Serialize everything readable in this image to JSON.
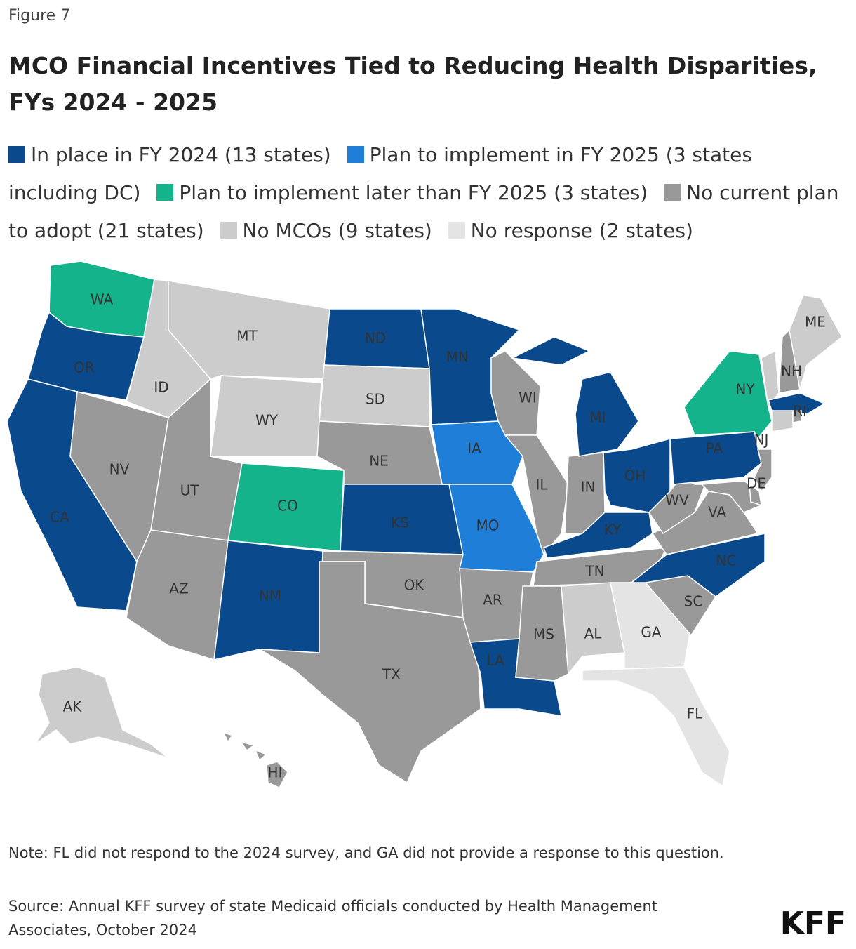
{
  "figure_label": "Figure 7",
  "title": "MCO Financial Incentives Tied to Reducing Health Disparities, FYs 2024 - 2025",
  "legend": [
    {
      "label": "In place in FY 2024 (13 states)",
      "color": "#0a4a8c"
    },
    {
      "label": "Plan to implement in FY 2025 (3 states including DC)",
      "color": "#1f7fd8"
    },
    {
      "label": "Plan to implement later than FY 2025 (3 states)",
      "color": "#14b38b"
    },
    {
      "label": "No current plan to adopt (21 states)",
      "color": "#999999"
    },
    {
      "label": "No MCOs (9 states)",
      "color": "#cccccc"
    },
    {
      "label": "No response (2 states)",
      "color": "#e4e4e4"
    }
  ],
  "states": [
    {
      "label": "WA",
      "category": 2
    },
    {
      "label": "OR",
      "category": 0
    },
    {
      "label": "CA",
      "category": 0
    },
    {
      "label": "NV",
      "category": 3
    },
    {
      "label": "ID",
      "category": 4
    },
    {
      "label": "MT",
      "category": 4
    },
    {
      "label": "WY",
      "category": 4
    },
    {
      "label": "UT",
      "category": 3
    },
    {
      "label": "CO",
      "category": 2
    },
    {
      "label": "AZ",
      "category": 3
    },
    {
      "label": "NM",
      "category": 0
    },
    {
      "label": "ND",
      "category": 0
    },
    {
      "label": "SD",
      "category": 4
    },
    {
      "label": "NE",
      "category": 3
    },
    {
      "label": "KS",
      "category": 0
    },
    {
      "label": "OK",
      "category": 3
    },
    {
      "label": "TX",
      "category": 3
    },
    {
      "label": "MN",
      "category": 0
    },
    {
      "label": "IA",
      "category": 1
    },
    {
      "label": "MO",
      "category": 1
    },
    {
      "label": "AR",
      "category": 3
    },
    {
      "label": "LA",
      "category": 0
    },
    {
      "label": "WI",
      "category": 3
    },
    {
      "label": "IL",
      "category": 3
    },
    {
      "label": "IN",
      "category": 3
    },
    {
      "label": "MI",
      "category": 0
    },
    {
      "label": "OH",
      "category": 0
    },
    {
      "label": "KY",
      "category": 0
    },
    {
      "label": "TN",
      "category": 3
    },
    {
      "label": "MS",
      "category": 3
    },
    {
      "label": "AL",
      "category": 4
    },
    {
      "label": "GA",
      "category": 5
    },
    {
      "label": "FL",
      "category": 5
    },
    {
      "label": "SC",
      "category": 3
    },
    {
      "label": "NC",
      "category": 0
    },
    {
      "label": "VA",
      "category": 3
    },
    {
      "label": "WV",
      "category": 3
    },
    {
      "label": "PA",
      "category": 0
    },
    {
      "label": "NY",
      "category": 2
    },
    {
      "label": "NJ",
      "category": 3
    },
    {
      "label": "DE",
      "category": 3
    },
    {
      "label": null,
      "category": 3
    },
    {
      "label": null,
      "category": 4
    },
    {
      "label": "NH",
      "category": 3
    },
    {
      "label": "ME",
      "category": 4
    },
    {
      "label": null,
      "category": 0
    },
    {
      "label": null,
      "category": 4
    },
    {
      "label": "RI",
      "category": 3
    },
    {
      "label": "AK",
      "category": 4
    },
    {
      "label": "HI",
      "category": 3
    }
  ],
  "note": "Note: FL did not respond to the 2024 survey, and GA did not provide a response to this question.",
  "source": "Source: Annual KFF survey of state Medicaid officials conducted by Health Management Associates, October 2024",
  "logo": "KFF"
}
